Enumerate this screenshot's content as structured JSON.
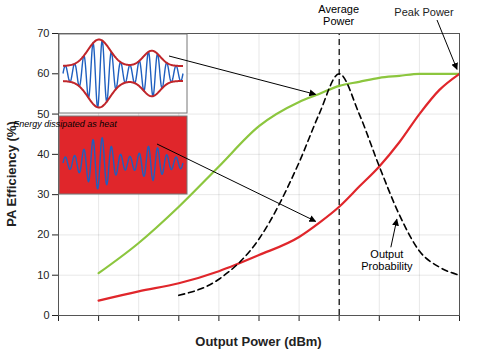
{
  "chart_data": {
    "type": "line",
    "xlabel": "Output Power (dBm)",
    "ylabel": "PA Efficiency (%)",
    "x": [
      1,
      2,
      3,
      4,
      5,
      6,
      6.5,
      7,
      7.5,
      8,
      8.5,
      9,
      9.5,
      10
    ],
    "xlim": [
      0,
      10
    ],
    "xticks": [
      0,
      1,
      2,
      3,
      4,
      5,
      6,
      7,
      8,
      9,
      10
    ],
    "ylim": [
      0,
      70
    ],
    "yticks": [
      0,
      10,
      20,
      30,
      40,
      50,
      60,
      70
    ],
    "grid": true,
    "tick_labels": "y",
    "series": [
      {
        "color": "#8cc63e",
        "values": [
          10.5,
          18,
          27,
          37,
          47,
          53,
          55,
          57,
          58,
          59,
          59.5,
          60,
          60,
          60
        ]
      },
      {
        "color": "#e0262b",
        "values": [
          3.7,
          6,
          8,
          11,
          15,
          19.5,
          23,
          27,
          32,
          37,
          43,
          50,
          56,
          60
        ]
      },
      {
        "name": "Output Probability",
        "color": "#000000",
        "line_style": "dashed",
        "values": [
          null,
          null,
          5,
          9,
          19,
          38,
          50,
          60,
          50,
          37,
          25,
          16,
          12,
          10
        ]
      }
    ],
    "annotations": [
      {
        "text": "Average Power",
        "x": 7
      },
      {
        "text": "Peak Power",
        "x": 10,
        "y": 60
      },
      {
        "text": "Energy dissipated as heat"
      }
    ]
  }
}
